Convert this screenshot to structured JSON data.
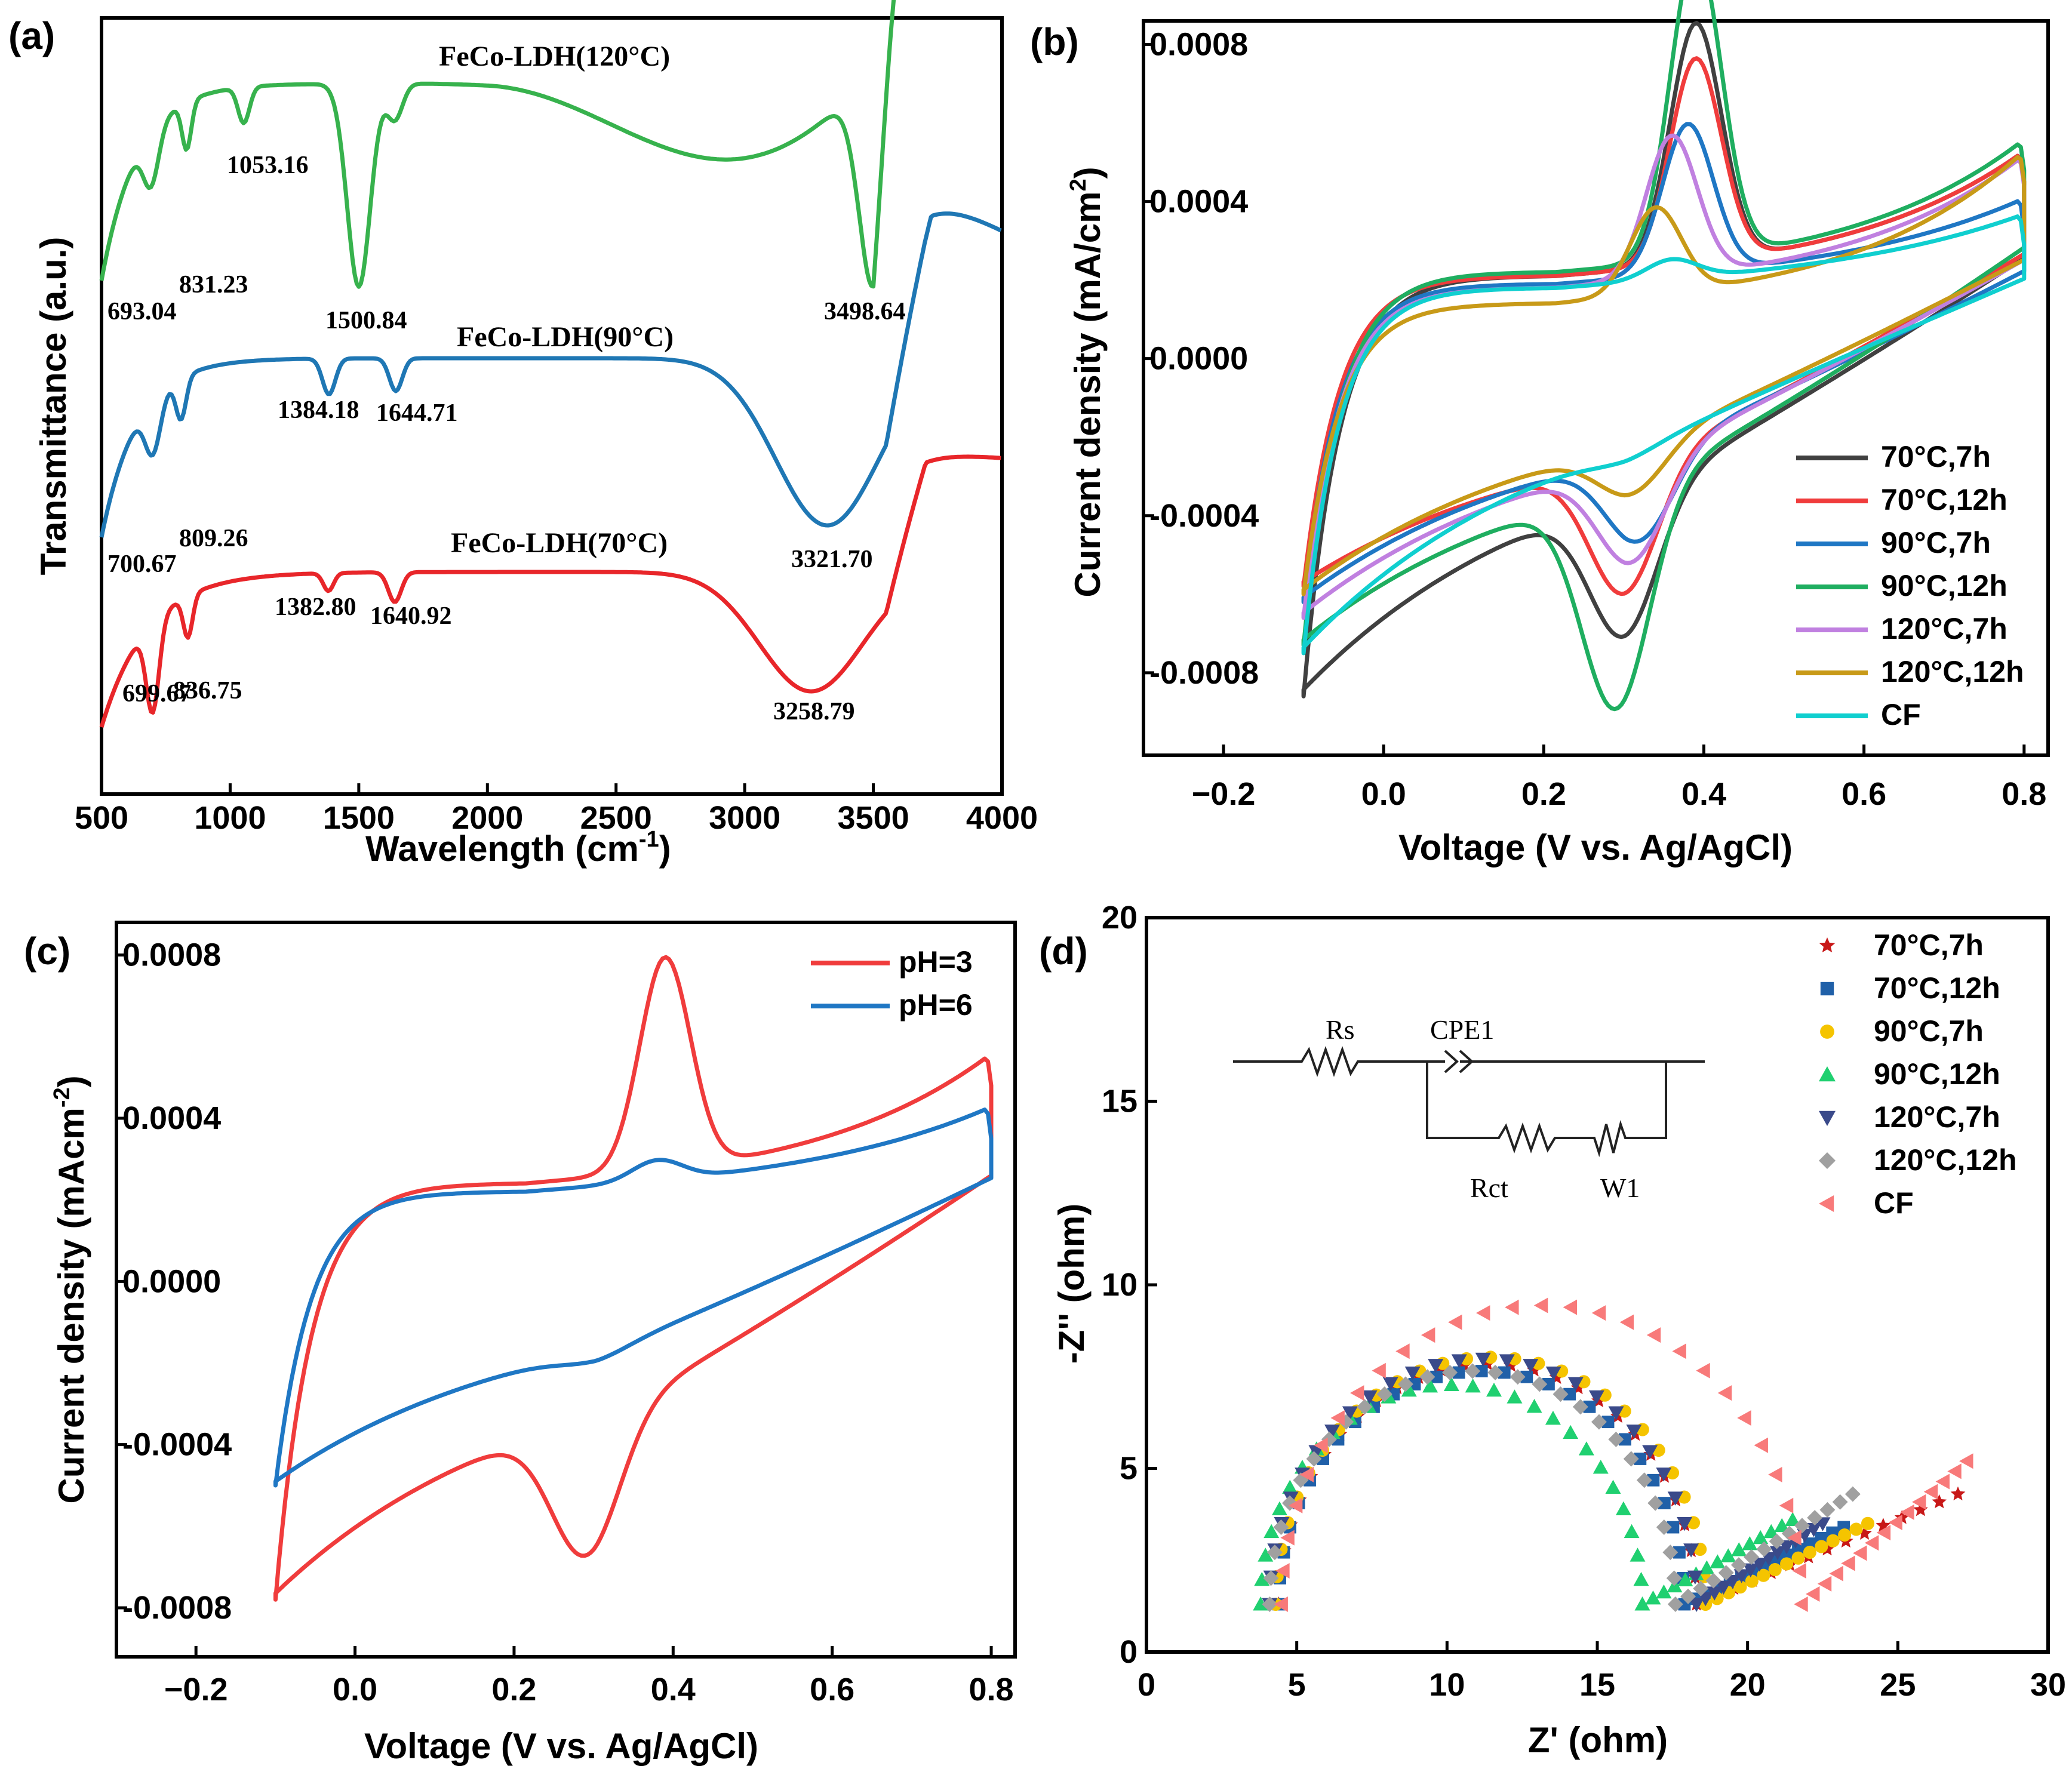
{
  "panels": {
    "a": {
      "label": "(a)"
    },
    "b": {
      "label": "(b)"
    },
    "c": {
      "label": "(c)"
    },
    "d": {
      "label": "(d)"
    }
  },
  "colors": {
    "black": "#404040",
    "red": "#f03c3c",
    "blue": "#1f77c4",
    "green": "#1fae60",
    "purple": "#c080e0",
    "gold": "#c89a18",
    "cyan": "#10cfcf",
    "ftir_green": "#37b24d",
    "ftir_blue": "#1f77b4",
    "ftir_red": "#e8262a",
    "eis_yellow": "#f5c400",
    "eis_navy": "#3a4a8a",
    "eis_gray": "#a0a0a0",
    "eis_pink": "#f87a7a",
    "eis_green": "#20d070",
    "eis_darkred": "#c81818",
    "eis_steel": "#2060a8"
  },
  "chart_data": [
    {
      "panel": "a",
      "type": "line",
      "xlabel": "Wavelength (cm",
      "xlabel_sup": "-1",
      "xlabel_end": ")",
      "ylabel": "Transmittance (a.u.)",
      "xlim": [
        500,
        4000
      ],
      "xticks": [
        "500",
        "1000",
        "1500",
        "2000",
        "2500",
        "3000",
        "3500",
        "4000"
      ],
      "series": [
        {
          "name": "FeCo-LDH(120°C)",
          "color_key": "ftir_green",
          "peaks": [
            "693.04",
            "831.23",
            "1053.16",
            "1500.84",
            "3498.64"
          ]
        },
        {
          "name": "FeCo-LDH(90°C)",
          "color_key": "ftir_blue",
          "peaks": [
            "700.67",
            "809.26",
            "1384.18",
            "1644.71",
            "3321.70"
          ]
        },
        {
          "name": "FeCo-LDH(70°C)",
          "color_key": "ftir_red",
          "peaks": [
            "699.67",
            "836.75",
            "1382.80",
            "1640.92",
            "3258.79"
          ]
        }
      ]
    },
    {
      "panel": "b",
      "type": "line",
      "xlabel": "Voltage (V vs. Ag/AgCl)",
      "ylabel": "Current density (mA/cm",
      "ylabel_sup": "2",
      "ylabel_end": ")",
      "xlim": [
        -0.3,
        0.83
      ],
      "ylim": [
        -0.00101,
        0.00086
      ],
      "xticks": [
        "−0.2",
        "0.0",
        "0.2",
        "0.4",
        "0.6",
        "0.8"
      ],
      "yticks": [
        "0.0008",
        "0.0004",
        "0.0000",
        "-0.0004",
        "-0.0008"
      ],
      "legend_position": "bottom-right",
      "series": [
        {
          "name": "70°C,7h",
          "color_key": "black",
          "peak_v": 0.39,
          "peak_a": 0.00061,
          "ox_base": 0.00021,
          "red_v": 0.3,
          "red_a": 0.00035,
          "red_base": -0.00018,
          "end_top": 0.00045,
          "end_bot": 0.00028,
          "start_y": -0.00086
        },
        {
          "name": "70°C,12h",
          "color_key": "red",
          "peak_v": 0.39,
          "peak_a": 0.00052,
          "ox_base": 0.00021,
          "red_v": 0.3,
          "red_a": 0.00033,
          "red_base": -0.00016,
          "end_top": 0.00045,
          "end_bot": 0.00028,
          "start_y": -0.00058
        },
        {
          "name": "90°C,7h",
          "color_key": "blue",
          "peak_v": 0.38,
          "peak_a": 0.00038,
          "ox_base": 0.00019,
          "red_v": 0.32,
          "red_a": 0.00022,
          "red_base": -0.00013,
          "end_top": 0.00033,
          "end_bot": 0.00024,
          "start_y": -0.00062
        },
        {
          "name": "90°C,12h",
          "color_key": "green",
          "peak_v": 0.39,
          "peak_a": 0.00078,
          "ox_base": 0.00022,
          "red_v": 0.29,
          "red_a": 0.00055,
          "red_base": -0.0002,
          "end_top": 0.00048,
          "end_bot": 0.0003,
          "start_y": -0.00073
        },
        {
          "name": "120°C,7h",
          "color_key": "purple",
          "peak_v": 0.36,
          "peak_a": 0.00036,
          "ox_base": 0.00018,
          "red_v": 0.31,
          "red_a": 0.00025,
          "red_base": -0.00014,
          "end_top": 0.00044,
          "end_bot": 0.00027,
          "start_y": -0.00066
        },
        {
          "name": "120°C,12h",
          "color_key": "gold",
          "peak_v": 0.34,
          "peak_a": 0.00022,
          "ox_base": 0.00014,
          "red_v": 0.31,
          "red_a": 0.00012,
          "red_base": -0.0001,
          "end_top": 0.00045,
          "end_bot": 0.00027,
          "start_y": -0.0006
        },
        {
          "name": "CF",
          "color_key": "cyan",
          "peak_v": 0.36,
          "peak_a": 5e-05,
          "ox_base": 0.00018,
          "red_v": 0.3,
          "red_a": 2e-05,
          "red_base": -6e-05,
          "end_top": 0.00029,
          "end_bot": 0.00023,
          "start_y": -0.00075
        }
      ]
    },
    {
      "panel": "c",
      "type": "line",
      "xlabel": "Voltage (V vs. Ag/AgCl)",
      "ylabel": "Current density (mAcm",
      "ylabel_sup": "-2",
      "ylabel_end": ")",
      "xlim": [
        -0.3,
        0.83
      ],
      "ylim": [
        -0.00092,
        0.00088
      ],
      "xticks": [
        "−0.2",
        "0.0",
        "0.2",
        "0.4",
        "0.6",
        "0.8"
      ],
      "yticks": [
        "0.0008",
        "0.0004",
        "0.0000",
        "-0.0004",
        "-0.0008"
      ],
      "legend_position": "top-right",
      "series": [
        {
          "name": "pH=3",
          "color_key": "red",
          "peak_v": 0.39,
          "peak_a": 0.00052,
          "ox_base": 0.00024,
          "red_v": 0.29,
          "red_a": 0.00033,
          "red_base": -0.00018,
          "end_top": 0.00048,
          "end_bot": 0.00028,
          "start_y": -0.00078
        },
        {
          "name": "pH=6",
          "color_key": "blue",
          "peak_v": 0.38,
          "peak_a": 5e-05,
          "ox_base": 0.00022,
          "red_v": 0.3,
          "red_a": 2e-05,
          "red_base": -6e-05,
          "end_top": 0.00035,
          "end_bot": 0.00027,
          "start_y": -0.0005
        }
      ]
    },
    {
      "panel": "d",
      "type": "scatter",
      "xlabel": "Z' (ohm)",
      "ylabel": "-Z'' (ohm)",
      "xlim": [
        0,
        30
      ],
      "ylim": [
        0,
        20
      ],
      "xticks": [
        "0",
        "5",
        "10",
        "15",
        "20",
        "25",
        "30"
      ],
      "yticks": [
        "0",
        "5",
        "10",
        "15",
        "20"
      ],
      "legend_position": "top-right",
      "series": [
        {
          "name": "70°C,7h",
          "marker": "star",
          "color_key": "eis_darkred",
          "z_start": 4.4,
          "z_end": 18.3,
          "tail": [
            27.0,
            4.3
          ]
        },
        {
          "name": "70°C,12h",
          "marker": "square",
          "color_key": "eis_steel",
          "z_start": 4.4,
          "z_end": 17.9,
          "tail": [
            23.2,
            3.4
          ]
        },
        {
          "name": "90°C,7h",
          "marker": "circle",
          "color_key": "eis_yellow",
          "z_start": 4.3,
          "z_end": 18.6,
          "tail": [
            24.0,
            3.5
          ]
        },
        {
          "name": "90°C,12h",
          "marker": "triangle-up",
          "color_key": "eis_green",
          "z_start": 3.8,
          "z_end": 16.5,
          "tail": [
            21.5,
            3.6
          ]
        },
        {
          "name": "120°C,7h",
          "marker": "triangle-down",
          "color_key": "eis_navy",
          "z_start": 4.1,
          "z_end": 18.3,
          "tail": [
            22.5,
            3.5
          ]
        },
        {
          "name": "120°C,12h",
          "marker": "diamond",
          "color_key": "eis_gray",
          "z_start": 4.1,
          "z_end": 17.6,
          "tail": [
            23.5,
            4.3
          ]
        },
        {
          "name": "CF",
          "marker": "triangle-left",
          "color_key": "eis_pink",
          "z_start": 4.5,
          "z_end": 21.8,
          "tail": [
            27.3,
            5.2
          ]
        }
      ],
      "inset_circuit": {
        "labels": [
          "Rs",
          "CPE1",
          "Rct",
          "W1"
        ]
      }
    }
  ]
}
